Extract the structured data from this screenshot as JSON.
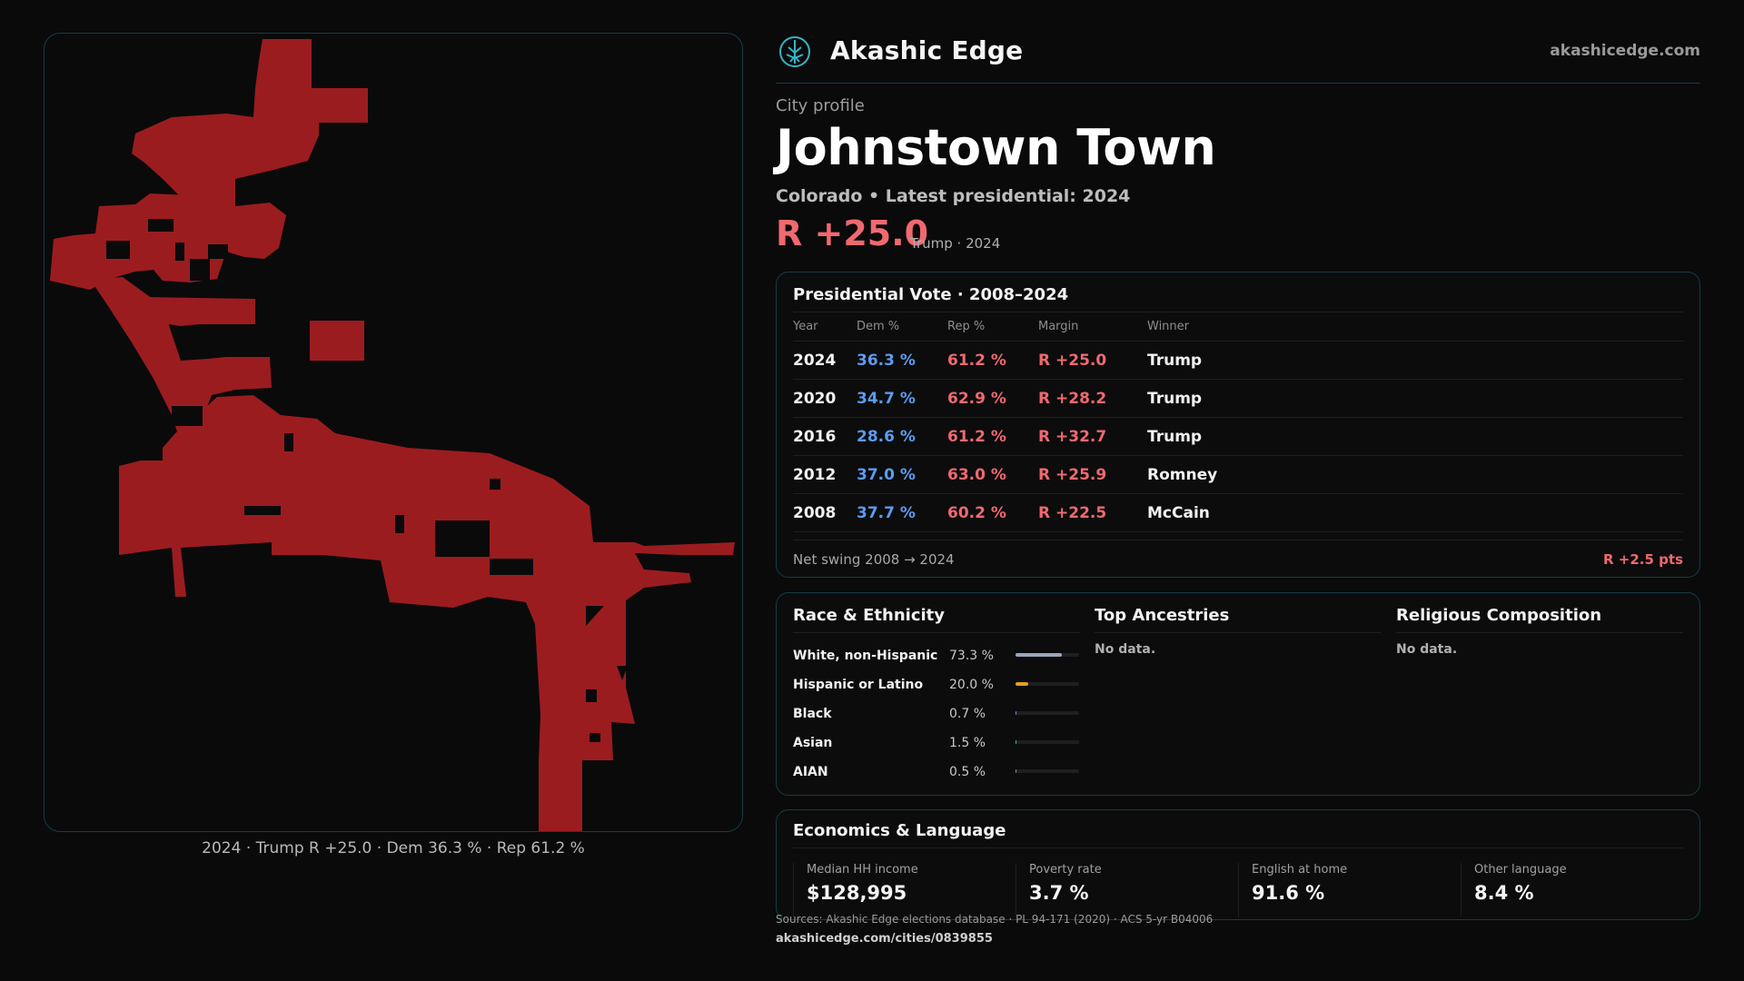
{
  "brand": {
    "name": "Akashic Edge",
    "url": "akashicedge.com",
    "logo_icon": "compass-tree-icon",
    "accent": "#38b2c4"
  },
  "profile": {
    "eyebrow": "City profile",
    "city": "Johnstown Town",
    "subtitle": "Colorado • Latest presidential: 2024",
    "margin": "R +25.0",
    "margin_sub": "Trump · 2024"
  },
  "map": {
    "caption": "2024 · Trump R +25.0 · Dem 36.3 % · Rep 61.2 %",
    "fill_color": "#9b1c1f"
  },
  "vote": {
    "title": "Presidential Vote · 2008–2024",
    "headers": {
      "year": "Year",
      "dem": "Dem %",
      "rep": "Rep %",
      "margin": "Margin",
      "winner": "Winner"
    },
    "rows": [
      {
        "year": "2024",
        "dem": "36.3 %",
        "rep": "61.2 %",
        "margin": "R +25.0",
        "winner": "Trump"
      },
      {
        "year": "2020",
        "dem": "34.7 %",
        "rep": "62.9 %",
        "margin": "R +28.2",
        "winner": "Trump"
      },
      {
        "year": "2016",
        "dem": "28.6 %",
        "rep": "61.2 %",
        "margin": "R +32.7",
        "winner": "Trump"
      },
      {
        "year": "2012",
        "dem": "37.0 %",
        "rep": "63.0 %",
        "margin": "R +25.9",
        "winner": "Romney"
      },
      {
        "year": "2008",
        "dem": "37.7 %",
        "rep": "60.2 %",
        "margin": "R +22.5",
        "winner": "McCain"
      }
    ],
    "swing_label": "Net swing 2008 → 2024",
    "swing_value": "R +2.5 pts",
    "dem_color": "#5b9cf0",
    "rep_color": "#f0696f"
  },
  "race": {
    "title": "Race & Ethnicity",
    "rows": [
      {
        "label": "White, non-Hispanic",
        "pct": "73.3 %",
        "share": 0.733,
        "color": "#9aa6b8"
      },
      {
        "label": "Hispanic or Latino",
        "pct": "20.0 %",
        "share": 0.2,
        "color": "#e0a020"
      },
      {
        "label": "Black",
        "pct": "0.7 %",
        "share": 0.007,
        "color": "#6a8cd0"
      },
      {
        "label": "Asian",
        "pct": "1.5 %",
        "share": 0.015,
        "color": "#38b2a4"
      },
      {
        "label": "AIAN",
        "pct": "0.5 %",
        "share": 0.005,
        "color": "#8a8a8a"
      }
    ]
  },
  "ancestries": {
    "title": "Top Ancestries",
    "empty": "No data."
  },
  "religion": {
    "title": "Religious Composition",
    "empty": "No data."
  },
  "economics": {
    "title": "Economics & Language",
    "stats": [
      {
        "label": "Median HH income",
        "value": "$128,995"
      },
      {
        "label": "Poverty rate",
        "value": "3.7 %"
      },
      {
        "label": "English at home",
        "value": "91.6 %"
      },
      {
        "label": "Other language",
        "value": "8.4 %"
      }
    ]
  },
  "footer": {
    "sources": "Sources: Akashic Edge elections database · PL 94-171 (2020) · ACS 5-yr B04006",
    "url": "akashicedge.com/cities/0839855"
  }
}
